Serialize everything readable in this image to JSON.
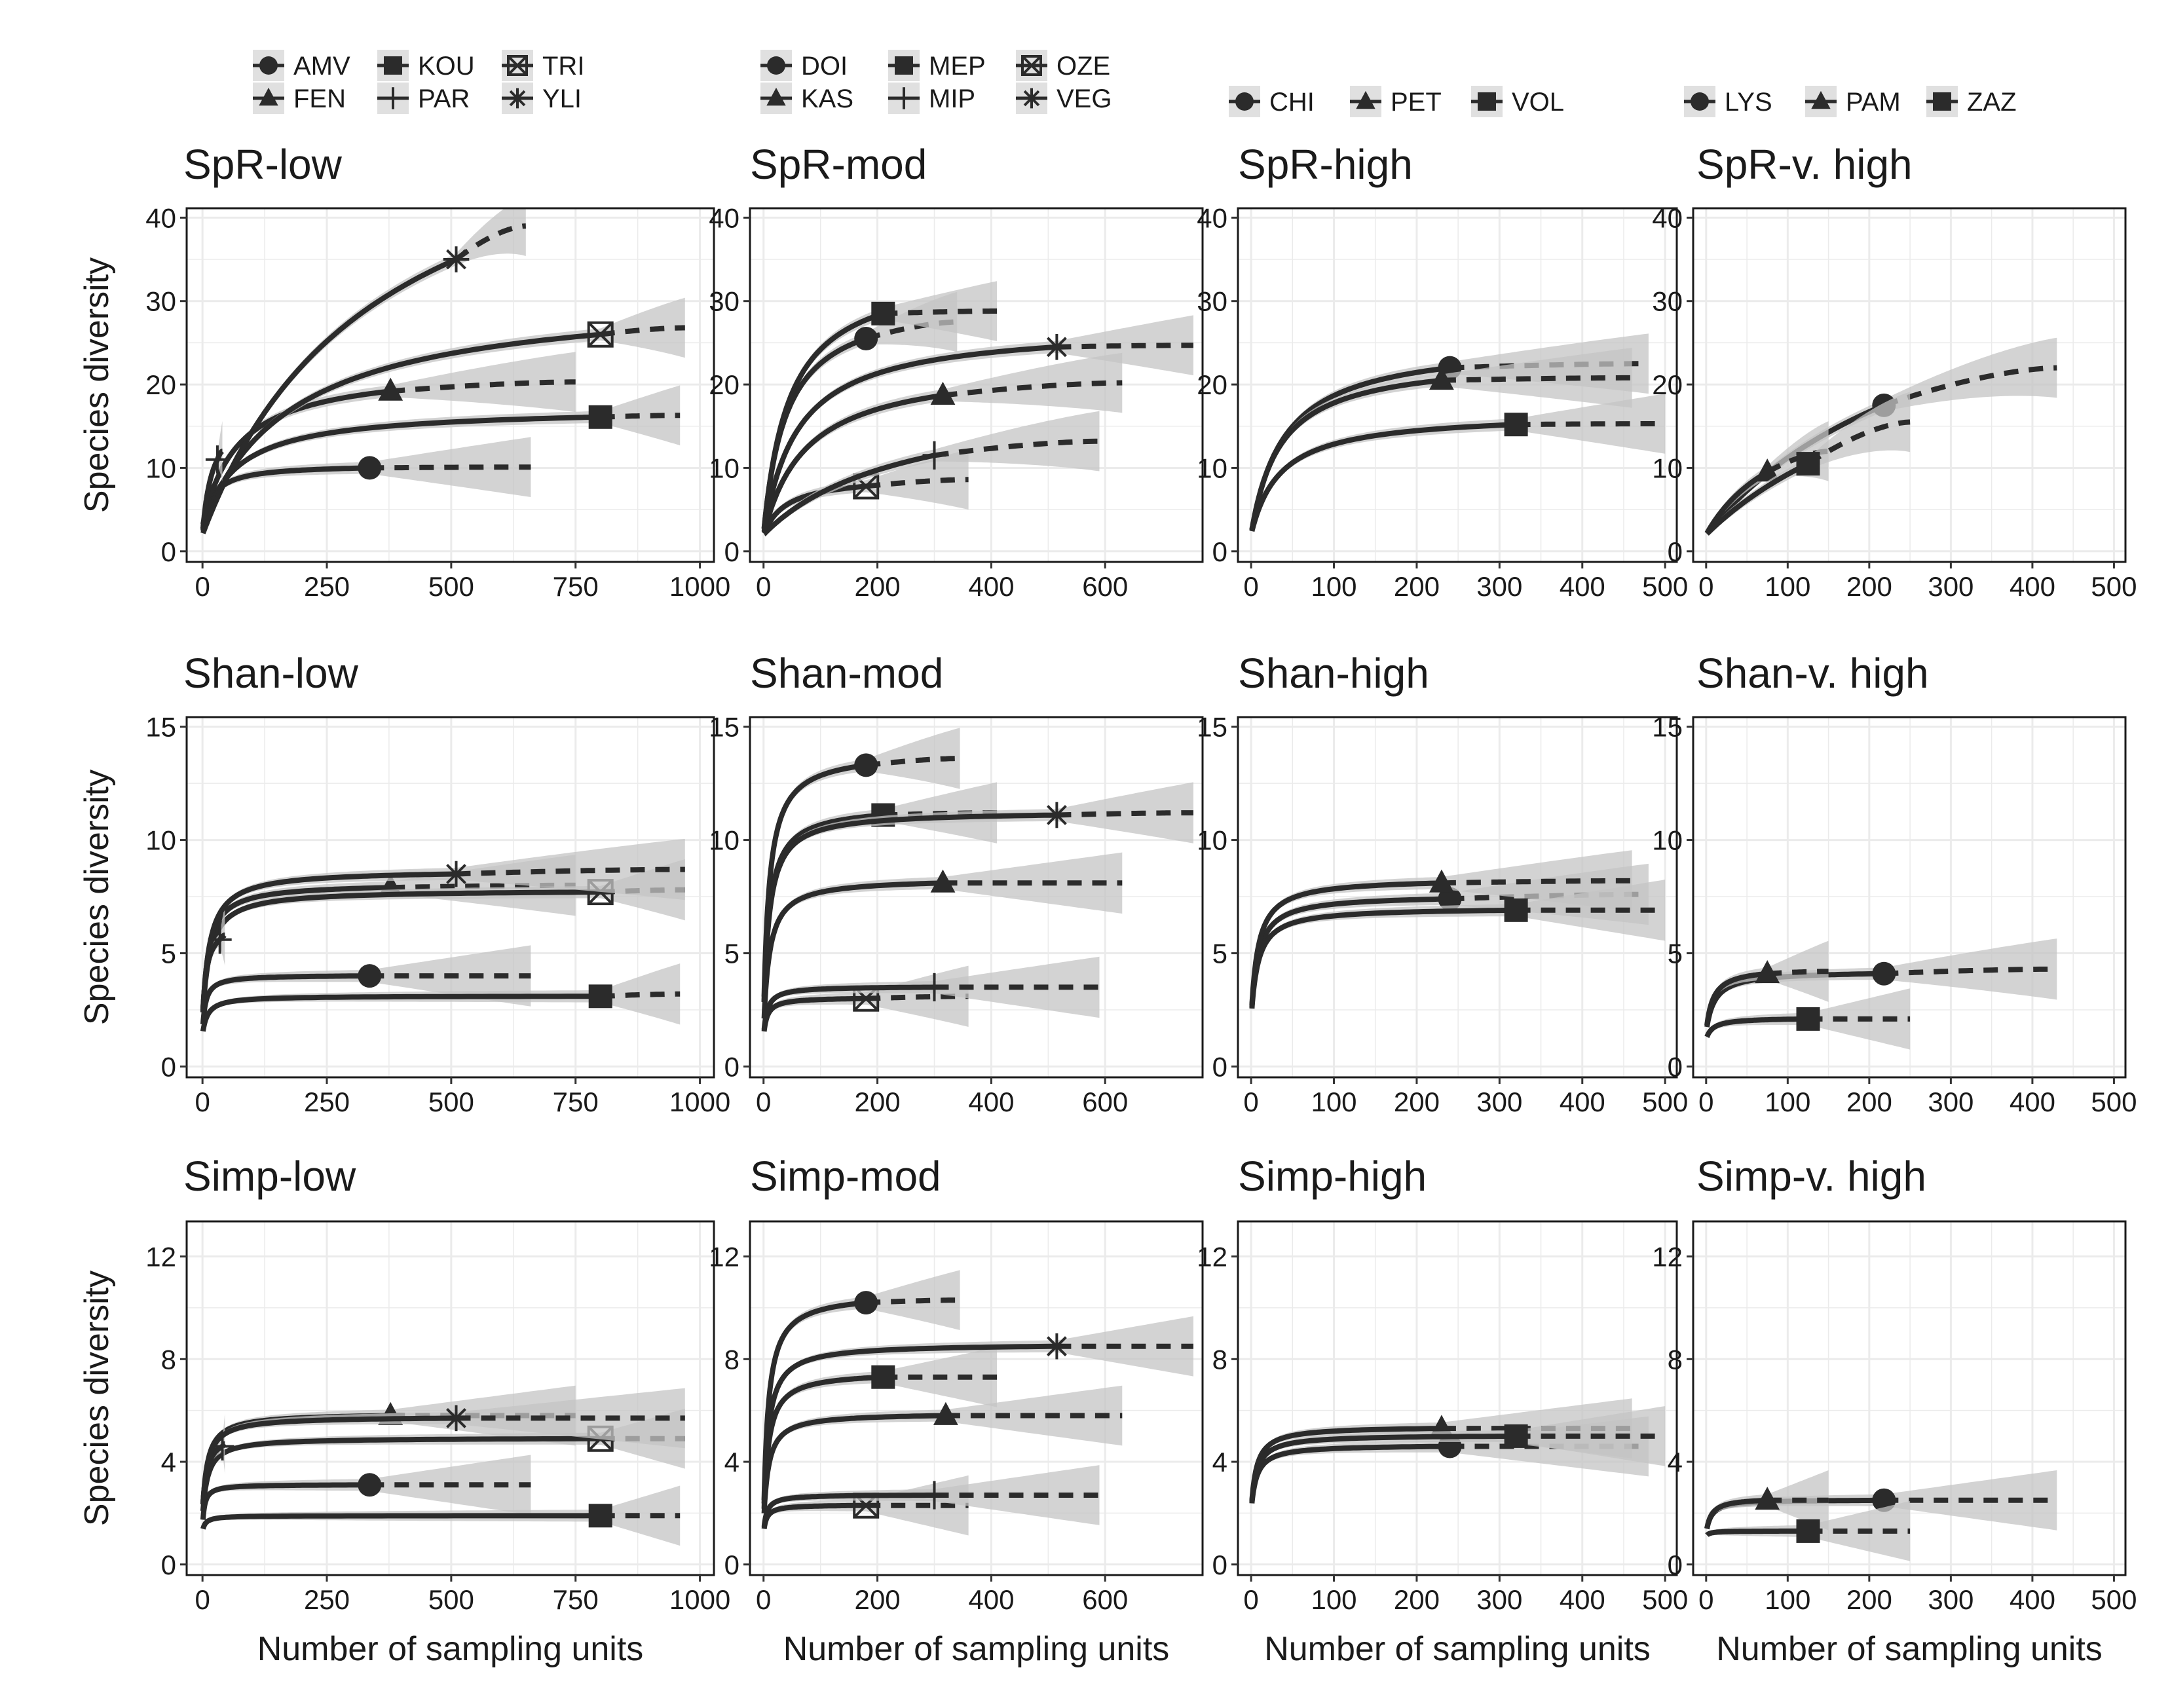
{
  "colors": {
    "line": "#2b2b2b",
    "ribbon": "#c4c4c4",
    "grid": "#ebebeb",
    "frame": "#1a1a1a",
    "marker": "#2b2b2b"
  },
  "y_axis_label": "Species diversity",
  "x_axis_label": "Number of sampling units",
  "legend_columns": [
    {
      "rows": [
        [
          {
            "label": "AMV",
            "shape": "circle"
          },
          {
            "label": "KOU",
            "shape": "square"
          },
          {
            "label": "TRI",
            "shape": "circle-minus"
          }
        ],
        [
          {
            "label": "FEN",
            "shape": "triangle"
          },
          {
            "label": "PAR",
            "shape": "plus"
          },
          {
            "label": "YLI",
            "shape": "asterisk"
          }
        ]
      ]
    },
    {
      "rows": [
        [
          {
            "label": "DOI",
            "shape": "circle"
          },
          {
            "label": "MEP",
            "shape": "square"
          },
          {
            "label": "OZE",
            "shape": "circle-minus"
          }
        ],
        [
          {
            "label": "KAS",
            "shape": "triangle"
          },
          {
            "label": "MIP",
            "shape": "plus"
          },
          {
            "label": "VEG",
            "shape": "asterisk"
          }
        ]
      ]
    },
    {
      "rows": [
        [
          {
            "label": "CHI",
            "shape": "circle"
          },
          {
            "label": "PET",
            "shape": "triangle"
          },
          {
            "label": "VOL",
            "shape": "square"
          }
        ]
      ]
    },
    {
      "rows": [
        [
          {
            "label": "LYS",
            "shape": "circle"
          },
          {
            "label": "PAM",
            "shape": "triangle"
          },
          {
            "label": "ZAZ",
            "shape": "square"
          }
        ]
      ]
    }
  ],
  "chart_data": [
    {
      "type": "line",
      "title": "SpR-low",
      "xlim": [
        0,
        1000
      ],
      "ylim": [
        0,
        40
      ],
      "xticks": [
        0,
        250,
        500,
        750,
        1000
      ],
      "yticks": [
        0,
        10,
        20,
        30,
        40
      ],
      "series": [
        {
          "name": "AMV",
          "shape": "circle",
          "n_obs": 336,
          "s_obs": 10,
          "n_end": 660,
          "s_end": 10.1,
          "s0": 2,
          "k": 18
        },
        {
          "name": "FEN",
          "shape": "triangle",
          "n_obs": 378,
          "s_obs": 19.2,
          "n_end": 750,
          "s_end": 20.3,
          "s0": 3,
          "k": 70
        },
        {
          "name": "KOU",
          "shape": "square",
          "n_obs": 800,
          "s_obs": 16.1,
          "n_end": 960,
          "s_end": 16.3,
          "s0": 3,
          "k": 70
        },
        {
          "name": "TRI",
          "shape": "circle-minus",
          "n_obs": 800,
          "s_obs": 26,
          "n_end": 970,
          "s_end": 26.8,
          "s0": 3,
          "k": 180
        },
        {
          "name": "PAR",
          "shape": "plus",
          "n_obs": 30,
          "s_obs": 11,
          "n_end": 40,
          "s_end": 12,
          "s0": 2,
          "k": 20
        },
        {
          "name": "YLI",
          "shape": "asterisk",
          "n_obs": 510,
          "s_obs": 35,
          "n_end": 650,
          "s_end": 39,
          "s0": 2,
          "k": 350
        }
      ]
    },
    {
      "type": "line",
      "title": "SpR-mod",
      "xlim": [
        0,
        750
      ],
      "ylim": [
        0,
        40
      ],
      "xticks": [
        0,
        200,
        400,
        600
      ],
      "yticks": [
        0,
        10,
        20,
        30,
        40
      ],
      "series": [
        {
          "name": "DOI",
          "shape": "circle",
          "n_obs": 180,
          "s_obs": 25.5,
          "n_end": 340,
          "s_end": 27.5,
          "s0": 2,
          "k": 40
        },
        {
          "name": "KAS",
          "shape": "triangle",
          "n_obs": 315,
          "s_obs": 18.7,
          "n_end": 630,
          "s_end": 20.2,
          "s0": 2,
          "k": 75
        },
        {
          "name": "MEP",
          "shape": "square",
          "n_obs": 210,
          "s_obs": 28.5,
          "n_end": 410,
          "s_end": 28.8,
          "s0": 2,
          "k": 45
        },
        {
          "name": "OZE",
          "shape": "circle-minus",
          "n_obs": 180,
          "s_obs": 7.8,
          "n_end": 360,
          "s_end": 8.6,
          "s0": 2,
          "k": 40
        },
        {
          "name": "MIP",
          "shape": "plus",
          "n_obs": 300,
          "s_obs": 11.5,
          "n_end": 590,
          "s_end": 13.2,
          "s0": 2,
          "k": 250
        },
        {
          "name": "VEG",
          "shape": "asterisk",
          "n_obs": 515,
          "s_obs": 24.5,
          "n_end": 755,
          "s_end": 24.7,
          "s0": 2,
          "k": 60
        }
      ]
    },
    {
      "type": "line",
      "title": "SpR-high",
      "xlim": [
        0,
        500
      ],
      "ylim": [
        0,
        40
      ],
      "xticks": [
        0,
        100,
        200,
        300,
        400,
        500
      ],
      "yticks": [
        0,
        10,
        20,
        30,
        40
      ],
      "series": [
        {
          "name": "CHI",
          "shape": "circle",
          "n_obs": 240,
          "s_obs": 22,
          "n_end": 480,
          "s_end": 22.5,
          "s0": 2,
          "k": 40
        },
        {
          "name": "PET",
          "shape": "triangle",
          "n_obs": 230,
          "s_obs": 20.5,
          "n_end": 460,
          "s_end": 20.8,
          "s0": 2,
          "k": 35
        },
        {
          "name": "VOL",
          "shape": "square",
          "n_obs": 320,
          "s_obs": 15.2,
          "n_end": 500,
          "s_end": 15.3,
          "s0": 2,
          "k": 35
        }
      ]
    },
    {
      "type": "line",
      "title": "SpR-v. high",
      "xlim": [
        0,
        500
      ],
      "ylim": [
        0,
        40
      ],
      "xticks": [
        0,
        100,
        200,
        300,
        400,
        500
      ],
      "yticks": [
        0,
        10,
        20,
        30,
        40
      ],
      "series": [
        {
          "name": "LYS",
          "shape": "circle",
          "n_obs": 218,
          "s_obs": 17.5,
          "n_end": 430,
          "s_end": 22,
          "s0": 2,
          "k": 300
        },
        {
          "name": "PAM",
          "shape": "triangle",
          "n_obs": 75,
          "s_obs": 9.5,
          "n_end": 150,
          "s_end": 12,
          "s0": 2,
          "k": 100
        },
        {
          "name": "ZAZ",
          "shape": "square",
          "n_obs": 125,
          "s_obs": 10.5,
          "n_end": 250,
          "s_end": 15.5,
          "s0": 2,
          "k": 300
        }
      ]
    },
    {
      "type": "line",
      "title": "Shan-low",
      "xlim": [
        0,
        1000
      ],
      "ylim": [
        0,
        15
      ],
      "xticks": [
        0,
        250,
        500,
        750,
        1000
      ],
      "yticks": [
        0,
        5,
        10,
        15
      ],
      "series": [
        {
          "name": "AMV",
          "shape": "circle",
          "n_obs": 336,
          "s_obs": 4,
          "n_end": 660,
          "s_end": 4,
          "s0": 1.5,
          "k": 6
        },
        {
          "name": "FEN",
          "shape": "triangle",
          "n_obs": 378,
          "s_obs": 7.9,
          "n_end": 750,
          "s_end": 8.0,
          "s0": 2,
          "k": 12
        },
        {
          "name": "KOU",
          "shape": "square",
          "n_obs": 800,
          "s_obs": 3.1,
          "n_end": 960,
          "s_end": 3.2,
          "s0": 1.4,
          "k": 10
        },
        {
          "name": "TRI",
          "shape": "circle-minus",
          "n_obs": 800,
          "s_obs": 7.7,
          "n_end": 970,
          "s_end": 7.8,
          "s0": 2,
          "k": 14
        },
        {
          "name": "PAR",
          "shape": "plus",
          "n_obs": 35,
          "s_obs": 5.6,
          "n_end": 45,
          "s_end": 5.8,
          "s0": 2,
          "k": 8
        },
        {
          "name": "YLI",
          "shape": "asterisk",
          "n_obs": 510,
          "s_obs": 8.5,
          "n_end": 970,
          "s_end": 8.7,
          "s0": 2,
          "k": 14
        }
      ]
    },
    {
      "type": "line",
      "title": "Shan-mod",
      "xlim": [
        0,
        750
      ],
      "ylim": [
        0,
        15
      ],
      "xticks": [
        0,
        200,
        400,
        600
      ],
      "yticks": [
        0,
        5,
        10,
        15
      ],
      "series": [
        {
          "name": "DOI",
          "shape": "circle",
          "n_obs": 180,
          "s_obs": 13.3,
          "n_end": 345,
          "s_end": 13.6,
          "s0": 2,
          "k": 10
        },
        {
          "name": "KAS",
          "shape": "triangle",
          "n_obs": 315,
          "s_obs": 8.1,
          "n_end": 630,
          "s_end": 8.1,
          "s0": 1.5,
          "k": 10
        },
        {
          "name": "MEP",
          "shape": "square",
          "n_obs": 210,
          "s_obs": 11.1,
          "n_end": 410,
          "s_end": 11.2,
          "s0": 2,
          "k": 10
        },
        {
          "name": "OZE",
          "shape": "circle-minus",
          "n_obs": 180,
          "s_obs": 3.0,
          "n_end": 360,
          "s_end": 3.1,
          "s0": 1.3,
          "k": 6
        },
        {
          "name": "MIP",
          "shape": "plus",
          "n_obs": 300,
          "s_obs": 3.5,
          "n_end": 590,
          "s_end": 3.5,
          "s0": 1.3,
          "k": 6
        },
        {
          "name": "VEG",
          "shape": "asterisk",
          "n_obs": 515,
          "s_obs": 11.1,
          "n_end": 755,
          "s_end": 11.2,
          "s0": 2,
          "k": 10
        }
      ]
    },
    {
      "type": "line",
      "title": "Shan-high",
      "xlim": [
        0,
        500
      ],
      "ylim": [
        0,
        15
      ],
      "xticks": [
        0,
        100,
        200,
        300,
        400,
        500
      ],
      "yticks": [
        0,
        5,
        10,
        15
      ],
      "series": [
        {
          "name": "CHI",
          "shape": "circle",
          "n_obs": 240,
          "s_obs": 7.4,
          "n_end": 480,
          "s_end": 7.6,
          "s0": 2,
          "k": 8
        },
        {
          "name": "PET",
          "shape": "triangle",
          "n_obs": 230,
          "s_obs": 8.1,
          "n_end": 460,
          "s_end": 8.2,
          "s0": 2,
          "k": 8
        },
        {
          "name": "VOL",
          "shape": "square",
          "n_obs": 320,
          "s_obs": 6.9,
          "n_end": 500,
          "s_end": 6.9,
          "s0": 2,
          "k": 8
        }
      ]
    },
    {
      "type": "line",
      "title": "Shan-v. high",
      "xlim": [
        0,
        500
      ],
      "ylim": [
        0,
        15
      ],
      "xticks": [
        0,
        100,
        200,
        300,
        400,
        500
      ],
      "yticks": [
        0,
        5,
        10,
        15
      ],
      "series": [
        {
          "name": "LYS",
          "shape": "circle",
          "n_obs": 218,
          "s_obs": 4.1,
          "n_end": 430,
          "s_end": 4.3,
          "s0": 1.5,
          "k": 10
        },
        {
          "name": "PAM",
          "shape": "triangle",
          "n_obs": 75,
          "s_obs": 4.1,
          "n_end": 150,
          "s_end": 4.2,
          "s0": 1.5,
          "k": 8
        },
        {
          "name": "ZAZ",
          "shape": "square",
          "n_obs": 125,
          "s_obs": 2.1,
          "n_end": 250,
          "s_end": 2.1,
          "s0": 1.2,
          "k": 8
        }
      ]
    },
    {
      "type": "line",
      "title": "Simp-low",
      "xlim": [
        0,
        1000
      ],
      "ylim": [
        0,
        13
      ],
      "xticks": [
        0,
        250,
        500,
        750,
        1000
      ],
      "yticks": [
        0,
        4,
        8,
        12
      ],
      "series": [
        {
          "name": "AMV",
          "shape": "circle",
          "n_obs": 336,
          "s_obs": 3.1,
          "n_end": 660,
          "s_end": 3.1,
          "s0": 1.4,
          "k": 4
        },
        {
          "name": "FEN",
          "shape": "triangle",
          "n_obs": 378,
          "s_obs": 5.8,
          "n_end": 750,
          "s_end": 5.8,
          "s0": 2,
          "k": 10
        },
        {
          "name": "KOU",
          "shape": "square",
          "n_obs": 800,
          "s_obs": 1.9,
          "n_end": 960,
          "s_end": 1.9,
          "s0": 1.3,
          "k": 6
        },
        {
          "name": "TRI",
          "shape": "circle-minus",
          "n_obs": 800,
          "s_obs": 4.9,
          "n_end": 970,
          "s_end": 4.9,
          "s0": 1.8,
          "k": 10
        },
        {
          "name": "PAR",
          "shape": "plus",
          "n_obs": 40,
          "s_obs": 4.6,
          "n_end": 45,
          "s_end": 4.7,
          "s0": 2,
          "k": 8
        },
        {
          "name": "YLI",
          "shape": "asterisk",
          "n_obs": 510,
          "s_obs": 5.7,
          "n_end": 970,
          "s_end": 5.7,
          "s0": 2,
          "k": 10
        }
      ]
    },
    {
      "type": "line",
      "title": "Simp-mod",
      "xlim": [
        0,
        750
      ],
      "ylim": [
        0,
        13
      ],
      "xticks": [
        0,
        200,
        400,
        600
      ],
      "yticks": [
        0,
        4,
        8,
        12
      ],
      "series": [
        {
          "name": "DOI",
          "shape": "circle",
          "n_obs": 180,
          "s_obs": 10.2,
          "n_end": 345,
          "s_end": 10.3,
          "s0": 1.5,
          "k": 8
        },
        {
          "name": "KAS",
          "shape": "triangle",
          "n_obs": 320,
          "s_obs": 5.8,
          "n_end": 630,
          "s_end": 5.8,
          "s0": 1.5,
          "k": 8
        },
        {
          "name": "MEP",
          "shape": "square",
          "n_obs": 210,
          "s_obs": 7.3,
          "n_end": 410,
          "s_end": 7.3,
          "s0": 1.5,
          "k": 8
        },
        {
          "name": "OZE",
          "shape": "circle-minus",
          "n_obs": 180,
          "s_obs": 2.3,
          "n_end": 360,
          "s_end": 2.3,
          "s0": 1.2,
          "k": 5
        },
        {
          "name": "MIP",
          "shape": "plus",
          "n_obs": 300,
          "s_obs": 2.7,
          "n_end": 590,
          "s_end": 2.7,
          "s0": 1.2,
          "k": 5
        },
        {
          "name": "VEG",
          "shape": "asterisk",
          "n_obs": 515,
          "s_obs": 8.5,
          "n_end": 755,
          "s_end": 8.5,
          "s0": 1.6,
          "k": 8
        }
      ]
    },
    {
      "type": "line",
      "title": "Simp-high",
      "xlim": [
        0,
        500
      ],
      "ylim": [
        0,
        13
      ],
      "xticks": [
        0,
        100,
        200,
        300,
        400,
        500
      ],
      "yticks": [
        0,
        4,
        8,
        12
      ],
      "series": [
        {
          "name": "CHI",
          "shape": "circle",
          "n_obs": 240,
          "s_obs": 4.6,
          "n_end": 480,
          "s_end": 4.6,
          "s0": 2,
          "k": 6
        },
        {
          "name": "PET",
          "shape": "triangle",
          "n_obs": 230,
          "s_obs": 5.3,
          "n_end": 460,
          "s_end": 5.3,
          "s0": 2,
          "k": 6
        },
        {
          "name": "VOL",
          "shape": "square",
          "n_obs": 320,
          "s_obs": 5.0,
          "n_end": 500,
          "s_end": 5.0,
          "s0": 2,
          "k": 6
        }
      ]
    },
    {
      "type": "line",
      "title": "Simp-v. high",
      "xlim": [
        0,
        500
      ],
      "ylim": [
        0,
        13
      ],
      "xticks": [
        0,
        100,
        200,
        300,
        400,
        500
      ],
      "yticks": [
        0,
        4,
        8,
        12
      ],
      "series": [
        {
          "name": "LYS",
          "shape": "circle",
          "n_obs": 218,
          "s_obs": 2.5,
          "n_end": 430,
          "s_end": 2.5,
          "s0": 1.2,
          "k": 6
        },
        {
          "name": "PAM",
          "shape": "triangle",
          "n_obs": 75,
          "s_obs": 2.5,
          "n_end": 150,
          "s_end": 2.5,
          "s0": 1.2,
          "k": 6
        },
        {
          "name": "ZAZ",
          "shape": "square",
          "n_obs": 125,
          "s_obs": 1.3,
          "n_end": 250,
          "s_end": 1.3,
          "s0": 1.1,
          "k": 4
        }
      ]
    }
  ]
}
